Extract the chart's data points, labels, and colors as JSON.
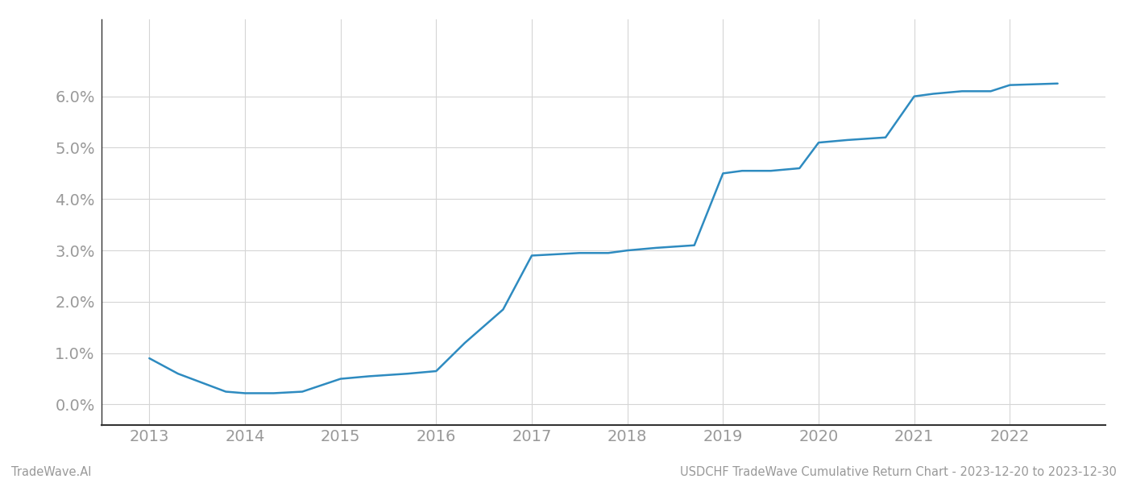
{
  "x_years": [
    2013.0,
    2013.3,
    2013.8,
    2014.0,
    2014.3,
    2014.6,
    2015.0,
    2015.3,
    2015.7,
    2016.0,
    2016.3,
    2016.7,
    2017.0,
    2017.2,
    2017.5,
    2017.8,
    2018.0,
    2018.3,
    2018.7,
    2019.0,
    2019.2,
    2019.5,
    2019.8,
    2020.0,
    2020.3,
    2020.7,
    2021.0,
    2021.2,
    2021.5,
    2021.8,
    2022.0,
    2022.5
  ],
  "y_values": [
    0.009,
    0.006,
    0.0025,
    0.0022,
    0.0022,
    0.0025,
    0.005,
    0.0055,
    0.006,
    0.0065,
    0.012,
    0.0185,
    0.029,
    0.0292,
    0.0295,
    0.0295,
    0.03,
    0.0305,
    0.031,
    0.045,
    0.0455,
    0.0455,
    0.046,
    0.051,
    0.0515,
    0.052,
    0.06,
    0.0605,
    0.061,
    0.061,
    0.0622,
    0.0625
  ],
  "xlim": [
    2012.5,
    2023.0
  ],
  "ylim": [
    -0.004,
    0.075
  ],
  "xticks": [
    2013,
    2014,
    2015,
    2016,
    2017,
    2018,
    2019,
    2020,
    2021,
    2022
  ],
  "yticks": [
    0.0,
    0.01,
    0.02,
    0.03,
    0.04,
    0.05,
    0.06
  ],
  "line_color": "#2e8bc0",
  "line_width": 1.8,
  "grid_color": "#d5d5d5",
  "background_color": "#ffffff",
  "footer_left": "TradeWave.AI",
  "footer_right": "USDCHF TradeWave Cumulative Return Chart - 2023-12-20 to 2023-12-30",
  "footer_fontsize": 10.5,
  "tick_fontsize": 14,
  "tick_color": "#999999",
  "footer_color": "#999999",
  "left_spine_color": "#333333",
  "bottom_spine_color": "#333333"
}
